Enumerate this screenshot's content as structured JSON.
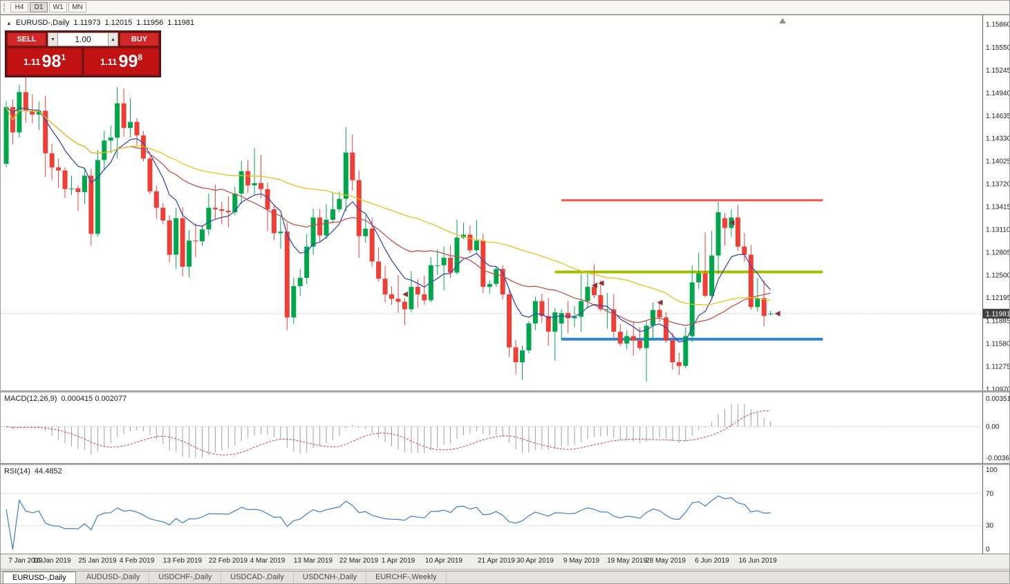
{
  "toolbar": {
    "timeframes": [
      {
        "label": "H4",
        "active": false
      },
      {
        "label": "D1",
        "active": true
      },
      {
        "label": "W1",
        "active": false
      },
      {
        "label": "MN",
        "active": false
      }
    ]
  },
  "quote": {
    "symbol": "EURUSD-,Daily",
    "open": "1.11973",
    "high": "1.12015",
    "low": "1.11956",
    "close": "1.11981"
  },
  "trade_panel": {
    "sell_label": "SELL",
    "buy_label": "BUY",
    "volume": "1.00",
    "sell_price": {
      "prefix": "1.11",
      "big": "98",
      "sup": "1"
    },
    "buy_price": {
      "prefix": "1.11",
      "big": "99",
      "sup": "8"
    }
  },
  "price_axis": {
    "labels": [
      "1.15860",
      "1.15550",
      "1.15245",
      "1.14940",
      "1.14635",
      "1.14330",
      "1.14025",
      "1.13720",
      "1.13415",
      "1.13110",
      "1.12805",
      "1.12500",
      "1.12195",
      "1.11885",
      "1.11580",
      "1.11275",
      "1.10970"
    ],
    "current": "1.11981"
  },
  "indicators": {
    "macd": {
      "label": "MACD(12,26,9)",
      "values": "0.000415 0.002077",
      "fast": 12,
      "slow": 26,
      "signal_period": 9,
      "scale_max": 0.003518,
      "scale_min": -0.00367,
      "axis": [
        "0.003518",
        "0.00",
        "-0.00367"
      ]
    },
    "rsi": {
      "label": "RSI(14)",
      "value": "44.4852",
      "period": 14,
      "levels": [
        70,
        30
      ],
      "axis": [
        "100",
        "70",
        "30",
        "0"
      ]
    }
  },
  "time_axis": {
    "ticks": [
      {
        "label": "7 Jan 2019",
        "index": 0
      },
      {
        "label": "16 Jan 2019",
        "index": 7
      },
      {
        "label": "25 Jan 2019",
        "index": 14
      },
      {
        "label": "4 Feb 2019",
        "index": 20
      },
      {
        "label": "13 Feb 2019",
        "index": 27
      },
      {
        "label": "22 Feb 2019",
        "index": 34
      },
      {
        "label": "4 Mar 2019",
        "index": 40
      },
      {
        "label": "13 Mar 2019",
        "index": 47
      },
      {
        "label": "22 Mar 2019",
        "index": 54
      },
      {
        "label": "1 Apr 2019",
        "index": 60
      },
      {
        "label": "10 Apr 2019",
        "index": 67
      },
      {
        "label": "21 Apr 2019",
        "index": 75
      },
      {
        "label": "30 Apr 2019",
        "index": 81
      },
      {
        "label": "9 May 2019",
        "index": 88
      },
      {
        "label": "19 May 2019",
        "index": 95
      },
      {
        "label": "28 May 2019",
        "index": 101
      },
      {
        "label": "6 Jun 2019",
        "index": 108
      },
      {
        "label": "16 Jun 2019",
        "index": 115
      }
    ]
  },
  "tabs": [
    {
      "label": "EURUSD-,Daily",
      "active": true
    },
    {
      "label": "AUDUSD-,Daily",
      "active": false
    },
    {
      "label": "USDCHF-,Daily",
      "active": false
    },
    {
      "label": "USDCAD-,Daily",
      "active": false
    },
    {
      "label": "USDCNH-,Daily",
      "active": false
    },
    {
      "label": "EURCHF-,Weekly",
      "active": false
    }
  ],
  "chart_data": {
    "type": "candlestick",
    "title": "EURUSD-,Daily",
    "price_top": 1.1586,
    "price_bottom": 1.1097,
    "bid": 1.11981,
    "colors": {
      "bull": "#00a74a",
      "bear": "#ef3e36",
      "bid_line": "#b4b4b4",
      "badge_bg": "#3f3f3f",
      "macd_hist": "#9e9e9e",
      "macd_signal": "#d23f3f",
      "rsi_line": "#3d7bbf",
      "marker": "#8d2f2f"
    },
    "overlays": [
      {
        "name": "ma-fast-blue-line",
        "method": "ema",
        "period": 8,
        "color": "#3949ab"
      },
      {
        "name": "ma-mid-red-line",
        "method": "sma",
        "period": 20,
        "color": "#c0504d"
      },
      {
        "name": "ma-slow-yellow-line",
        "method": "sma",
        "period": 50,
        "color": "#e8c21a"
      }
    ],
    "hlines": [
      {
        "name": "resistance-line-red",
        "price": 1.135,
        "color": "#ff4f4f",
        "width": 3,
        "from_index": 85,
        "to_index": 125
      },
      {
        "name": "pivot-line-olive",
        "price": 1.1254,
        "color": "#a4bd00",
        "width": 4,
        "from_index": 84,
        "to_index": 125
      },
      {
        "name": "support-line-blue",
        "price": 1.1164,
        "color": "#2a83d6",
        "width": 4,
        "from_index": 85,
        "to_index": 125
      }
    ],
    "markers": [
      {
        "index": 60,
        "price": 1.1224
      },
      {
        "index": 89,
        "price": 1.1236
      },
      {
        "index": 90,
        "price": 1.1239
      },
      {
        "index": 99,
        "price": 1.1213
      },
      {
        "index": 110,
        "price": 1.132
      },
      {
        "index": 117,
        "price": 1.11981
      }
    ],
    "dates": [
      "2019-01-07",
      "2019-01-08",
      "2019-01-09",
      "2019-01-10",
      "2019-01-11",
      "2019-01-14",
      "2019-01-15",
      "2019-01-16",
      "2019-01-17",
      "2019-01-18",
      "2019-01-21",
      "2019-01-22",
      "2019-01-23",
      "2019-01-24",
      "2019-01-25",
      "2019-01-28",
      "2019-01-29",
      "2019-01-30",
      "2019-01-31",
      "2019-02-01",
      "2019-02-04",
      "2019-02-05",
      "2019-02-06",
      "2019-02-07",
      "2019-02-08",
      "2019-02-11",
      "2019-02-12",
      "2019-02-13",
      "2019-02-14",
      "2019-02-15",
      "2019-02-18",
      "2019-02-19",
      "2019-02-20",
      "2019-02-21",
      "2019-02-22",
      "2019-02-25",
      "2019-02-26",
      "2019-02-27",
      "2019-02-28",
      "2019-03-01",
      "2019-03-04",
      "2019-03-05",
      "2019-03-06",
      "2019-03-07",
      "2019-03-08",
      "2019-03-11",
      "2019-03-12",
      "2019-03-13",
      "2019-03-14",
      "2019-03-15",
      "2019-03-18",
      "2019-03-19",
      "2019-03-20",
      "2019-03-21",
      "2019-03-22",
      "2019-03-25",
      "2019-03-26",
      "2019-03-27",
      "2019-03-28",
      "2019-03-29",
      "2019-04-01",
      "2019-04-02",
      "2019-04-03",
      "2019-04-04",
      "2019-04-05",
      "2019-04-08",
      "2019-04-09",
      "2019-04-10",
      "2019-04-11",
      "2019-04-12",
      "2019-04-15",
      "2019-04-16",
      "2019-04-17",
      "2019-04-18",
      "2019-04-19",
      "2019-04-22",
      "2019-04-23",
      "2019-04-24",
      "2019-04-25",
      "2019-04-26",
      "2019-04-29",
      "2019-04-30",
      "2019-05-01",
      "2019-05-02",
      "2019-05-03",
      "2019-05-06",
      "2019-05-07",
      "2019-05-08",
      "2019-05-09",
      "2019-05-10",
      "2019-05-13",
      "2019-05-14",
      "2019-05-15",
      "2019-05-16",
      "2019-05-17",
      "2019-05-20",
      "2019-05-21",
      "2019-05-22",
      "2019-05-23",
      "2019-05-24",
      "2019-05-27",
      "2019-05-28",
      "2019-05-29",
      "2019-05-30",
      "2019-05-31",
      "2019-06-03",
      "2019-06-04",
      "2019-06-05",
      "2019-06-06",
      "2019-06-07",
      "2019-06-10",
      "2019-06-11",
      "2019-06-12",
      "2019-06-13",
      "2019-06-14",
      "2019-06-17",
      "2019-06-18",
      "2019-06-19"
    ],
    "ohlc": [
      [
        1.1399,
        1.1483,
        1.1394,
        1.1475
      ],
      [
        1.1475,
        1.1485,
        1.1425,
        1.1441
      ],
      [
        1.1441,
        1.1505,
        1.1434,
        1.1495
      ],
      [
        1.1495,
        1.1515,
        1.1454,
        1.147
      ],
      [
        1.147,
        1.1492,
        1.1453,
        1.1465
      ],
      [
        1.1465,
        1.1482,
        1.1444,
        1.147
      ],
      [
        1.147,
        1.149,
        1.1381,
        1.1413
      ],
      [
        1.1413,
        1.1426,
        1.1377,
        1.1394
      ],
      [
        1.1394,
        1.1406,
        1.1367,
        1.139
      ],
      [
        1.139,
        1.1394,
        1.1353,
        1.1365
      ],
      [
        1.1365,
        1.1383,
        1.1357,
        1.1366
      ],
      [
        1.1366,
        1.137,
        1.1336,
        1.1361
      ],
      [
        1.1361,
        1.1394,
        1.1345,
        1.1383
      ],
      [
        1.1383,
        1.1392,
        1.1289,
        1.1305
      ],
      [
        1.1305,
        1.1418,
        1.1301,
        1.1404
      ],
      [
        1.1404,
        1.1443,
        1.139,
        1.143
      ],
      [
        1.143,
        1.145,
        1.1413,
        1.1434
      ],
      [
        1.1434,
        1.1502,
        1.1406,
        1.148
      ],
      [
        1.148,
        1.15,
        1.1435,
        1.1447
      ],
      [
        1.1447,
        1.1487,
        1.1434,
        1.1455
      ],
      [
        1.1455,
        1.146,
        1.1424,
        1.1437
      ],
      [
        1.1437,
        1.1443,
        1.1402,
        1.1406
      ],
      [
        1.1406,
        1.141,
        1.1358,
        1.1362
      ],
      [
        1.1362,
        1.137,
        1.1325,
        1.134
      ],
      [
        1.134,
        1.1346,
        1.1318,
        1.1323
      ],
      [
        1.1323,
        1.133,
        1.1267,
        1.1277
      ],
      [
        1.1277,
        1.134,
        1.1258,
        1.1326
      ],
      [
        1.1326,
        1.1341,
        1.1248,
        1.1261
      ],
      [
        1.1261,
        1.131,
        1.1247,
        1.1296
      ],
      [
        1.1296,
        1.1319,
        1.1274,
        1.1295
      ],
      [
        1.1295,
        1.1317,
        1.1289,
        1.1311
      ],
      [
        1.1311,
        1.1359,
        1.1303,
        1.134
      ],
      [
        1.134,
        1.1371,
        1.1324,
        1.1338
      ],
      [
        1.1338,
        1.1348,
        1.1318,
        1.1336
      ],
      [
        1.1336,
        1.1355,
        1.1314,
        1.1334
      ],
      [
        1.1334,
        1.1368,
        1.133,
        1.1359
      ],
      [
        1.1359,
        1.1403,
        1.1345,
        1.1389
      ],
      [
        1.1389,
        1.1404,
        1.136,
        1.137
      ],
      [
        1.137,
        1.142,
        1.1358,
        1.1373
      ],
      [
        1.1373,
        1.1411,
        1.1353,
        1.1365
      ],
      [
        1.1365,
        1.1374,
        1.1309,
        1.1338
      ],
      [
        1.1338,
        1.1344,
        1.1297,
        1.1306
      ],
      [
        1.1306,
        1.1329,
        1.1285,
        1.1308
      ],
      [
        1.1308,
        1.132,
        1.1176,
        1.1193
      ],
      [
        1.1193,
        1.1246,
        1.1185,
        1.1235
      ],
      [
        1.1235,
        1.1258,
        1.1222,
        1.1246
      ],
      [
        1.1246,
        1.1305,
        1.1238,
        1.1288
      ],
      [
        1.1288,
        1.1339,
        1.1277,
        1.1327
      ],
      [
        1.1327,
        1.1338,
        1.1294,
        1.1303
      ],
      [
        1.1303,
        1.1345,
        1.1298,
        1.1324
      ],
      [
        1.1324,
        1.136,
        1.1319,
        1.1338
      ],
      [
        1.1338,
        1.1362,
        1.1334,
        1.1352
      ],
      [
        1.1352,
        1.1448,
        1.1335,
        1.1414
      ],
      [
        1.1414,
        1.1438,
        1.1363,
        1.1377
      ],
      [
        1.1377,
        1.139,
        1.1273,
        1.1302
      ],
      [
        1.1302,
        1.133,
        1.1293,
        1.1312
      ],
      [
        1.1312,
        1.1327,
        1.1261,
        1.1268
      ],
      [
        1.1268,
        1.1287,
        1.1241,
        1.1245
      ],
      [
        1.1245,
        1.1262,
        1.1213,
        1.1224
      ],
      [
        1.1224,
        1.1235,
        1.121,
        1.1218
      ],
      [
        1.1218,
        1.125,
        1.1199,
        1.1214
      ],
      [
        1.1214,
        1.1219,
        1.1183,
        1.1204
      ],
      [
        1.1204,
        1.1255,
        1.12,
        1.1234
      ],
      [
        1.1234,
        1.1244,
        1.1206,
        1.1224
      ],
      [
        1.1224,
        1.1249,
        1.121,
        1.1216
      ],
      [
        1.1216,
        1.1274,
        1.1213,
        1.1263
      ],
      [
        1.1263,
        1.1284,
        1.125,
        1.1263
      ],
      [
        1.1263,
        1.1288,
        1.1229,
        1.1273
      ],
      [
        1.1273,
        1.129,
        1.1246,
        1.1253
      ],
      [
        1.1253,
        1.1324,
        1.1251,
        1.13
      ],
      [
        1.13,
        1.132,
        1.1298,
        1.1304
      ],
      [
        1.1304,
        1.1316,
        1.1279,
        1.1283
      ],
      [
        1.1283,
        1.1324,
        1.128,
        1.1296
      ],
      [
        1.1296,
        1.1305,
        1.1226,
        1.1234
      ],
      [
        1.1234,
        1.1243,
        1.1225,
        1.1238
      ],
      [
        1.1238,
        1.1262,
        1.1234,
        1.1258
      ],
      [
        1.1258,
        1.1263,
        1.1217,
        1.1224
      ],
      [
        1.1224,
        1.123,
        1.114,
        1.1153
      ],
      [
        1.1153,
        1.1163,
        1.1117,
        1.1133
      ],
      [
        1.1133,
        1.1155,
        1.111,
        1.1149
      ],
      [
        1.1149,
        1.1188,
        1.1145,
        1.1185
      ],
      [
        1.1185,
        1.1221,
        1.1176,
        1.1215
      ],
      [
        1.1215,
        1.1225,
        1.1186,
        1.1195
      ],
      [
        1.1195,
        1.1219,
        1.1155,
        1.1174
      ],
      [
        1.1174,
        1.1206,
        1.1135,
        1.12
      ],
      [
        1.1185,
        1.1204,
        1.1163,
        1.1199
      ],
      [
        1.1199,
        1.1215,
        1.1172,
        1.1192
      ],
      [
        1.1192,
        1.1208,
        1.118,
        1.1194
      ],
      [
        1.1194,
        1.1251,
        1.1174,
        1.1215
      ],
      [
        1.1215,
        1.1254,
        1.1205,
        1.1234
      ],
      [
        1.1234,
        1.1264,
        1.1219,
        1.1223
      ],
      [
        1.1223,
        1.1243,
        1.1201,
        1.1204
      ],
      [
        1.1204,
        1.1226,
        1.1178,
        1.1204
      ],
      [
        1.1204,
        1.1224,
        1.1166,
        1.1174
      ],
      [
        1.1174,
        1.1184,
        1.1155,
        1.1158
      ],
      [
        1.1158,
        1.1176,
        1.115,
        1.1168
      ],
      [
        1.1168,
        1.1188,
        1.1142,
        1.1162
      ],
      [
        1.1162,
        1.118,
        1.1149,
        1.1152
      ],
      [
        1.1152,
        1.1188,
        1.1107,
        1.1182
      ],
      [
        1.1182,
        1.1213,
        1.1163,
        1.1203
      ],
      [
        1.1203,
        1.1215,
        1.1187,
        1.1193
      ],
      [
        1.1193,
        1.12,
        1.1159,
        1.1162
      ],
      [
        1.1162,
        1.1172,
        1.1123,
        1.1133
      ],
      [
        1.1133,
        1.1146,
        1.1116,
        1.1128
      ],
      [
        1.1128,
        1.118,
        1.1125,
        1.1168
      ],
      [
        1.1168,
        1.1263,
        1.116,
        1.124
      ],
      [
        1.124,
        1.128,
        1.1231,
        1.1252
      ],
      [
        1.1252,
        1.1307,
        1.122,
        1.1222
      ],
      [
        1.1222,
        1.1309,
        1.1219,
        1.1276
      ],
      [
        1.1276,
        1.1348,
        1.1251,
        1.1334
      ],
      [
        1.1326,
        1.1333,
        1.1289,
        1.1313
      ],
      [
        1.1313,
        1.1338,
        1.1301,
        1.1327
      ],
      [
        1.1327,
        1.1344,
        1.1282,
        1.1288
      ],
      [
        1.1288,
        1.1306,
        1.1268,
        1.1277
      ],
      [
        1.1277,
        1.129,
        1.1203,
        1.1207
      ],
      [
        1.1207,
        1.1246,
        1.1201,
        1.1219
      ],
      [
        1.1219,
        1.1243,
        1.1181,
        1.1195
      ],
      [
        1.11973,
        1.12015,
        1.11956,
        1.11981
      ]
    ]
  }
}
